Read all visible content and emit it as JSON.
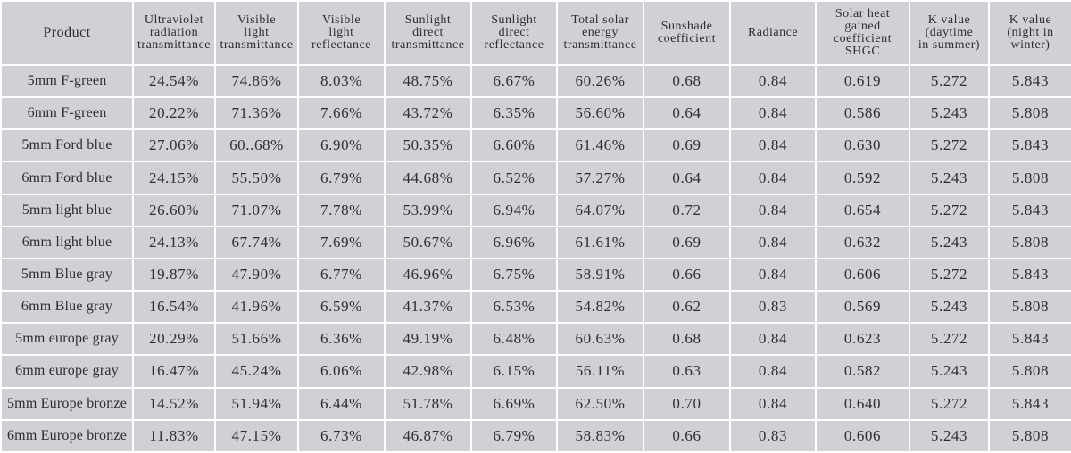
{
  "table": {
    "headers": [
      "Product",
      "Ultraviolet\nradiation\ntransmittance",
      "Visible\nlight\ntransmittance",
      "Visible\nlight\nreflectance",
      "Sunlight\ndirect\ntransmittance",
      "Sunlight\ndirect\nreflectance",
      "Total solar\nenergy\ntransmittance",
      "Sunshade\ncoefficient",
      "Radiance",
      "Solar heat\ngained\ncoefficient\nSHGC",
      "K value\n(daytime\nin summer)",
      "K value\n(night in\nwinter)"
    ],
    "rows": [
      [
        "5mm F-green",
        "24.54%",
        "74.86%",
        "8.03%",
        "48.75%",
        "6.67%",
        "60.26%",
        "0.68",
        "0.84",
        "0.619",
        "5.272",
        "5.843"
      ],
      [
        "6mm F-green",
        "20.22%",
        "71.36%",
        "7.66%",
        "43.72%",
        "6.35%",
        "56.60%",
        "0.64",
        "0.84",
        "0.586",
        "5.243",
        "5.808"
      ],
      [
        "5mm Ford blue",
        "27.06%",
        "60..68%",
        "6.90%",
        "50.35%",
        "6.60%",
        "61.46%",
        "0.69",
        "0.84",
        "0.630",
        "5.272",
        "5.843"
      ],
      [
        "6mm Ford blue",
        "24.15%",
        "55.50%",
        "6.79%",
        "44.68%",
        "6.52%",
        "57.27%",
        "0.64",
        "0.84",
        "0.592",
        "5.243",
        "5.808"
      ],
      [
        "5mm light blue",
        "26.60%",
        "71.07%",
        "7.78%",
        "53.99%",
        "6.94%",
        "64.07%",
        "0.72",
        "0.84",
        "0.654",
        "5.272",
        "5.843"
      ],
      [
        "6mm light blue",
        "24.13%",
        "67.74%",
        "7.69%",
        "50.67%",
        "6.96%",
        "61.61%",
        "0.69",
        "0.84",
        "0.632",
        "5.243",
        "5.808"
      ],
      [
        "5mm Blue gray",
        "19.87%",
        "47.90%",
        "6.77%",
        "46.96%",
        "6.75%",
        "58.91%",
        "0.66",
        "0.84",
        "0.606",
        "5.272",
        "5.843"
      ],
      [
        "6mm Blue gray",
        "16.54%",
        "41.96%",
        "6.59%",
        "41.37%",
        "6.53%",
        "54.82%",
        "0.62",
        "0.83",
        "0.569",
        "5.243",
        "5.808"
      ],
      [
        "5mm europe gray",
        "20.29%",
        "51.66%",
        "6.36%",
        "49.19%",
        "6.48%",
        "60.63%",
        "0.68",
        "0.84",
        "0.623",
        "5.272",
        "5.843"
      ],
      [
        "6mm europe gray",
        "16.47%",
        "45.24%",
        "6.06%",
        "42.98%",
        "6.15%",
        "56.11%",
        "0.63",
        "0.84",
        "0.582",
        "5.243",
        "5.808"
      ],
      [
        "5mm Europe bronze",
        "14.52%",
        "51.94%",
        "6.44%",
        "51.78%",
        "6.69%",
        "62.50%",
        "0.70",
        "0.84",
        "0.640",
        "5.272",
        "5.843"
      ],
      [
        "6mm Europe bronze",
        "11.83%",
        "47.15%",
        "6.73%",
        "46.87%",
        "6.79%",
        "58.83%",
        "0.66",
        "0.83",
        "0.606",
        "5.243",
        "5.808"
      ]
    ]
  }
}
